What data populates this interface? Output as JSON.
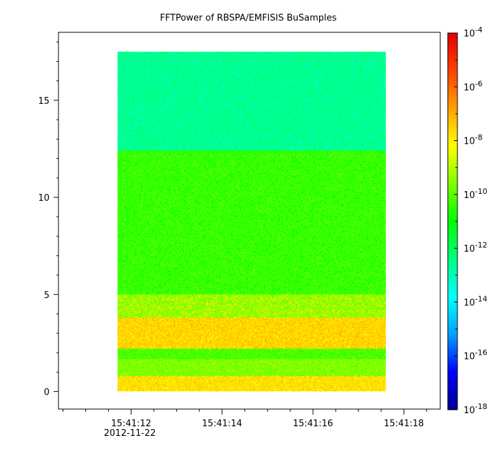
{
  "chart_data": {
    "type": "heatmap",
    "title": "FFTPower of RBSPA/EMFISIS  BuSamples",
    "xlabel": "",
    "ylabel": "",
    "x_date_label": "2012-11-22",
    "x_tick_labels": [
      "15:41:12",
      "15:41:14",
      "15:41:16",
      "15:41:18"
    ],
    "x_ticks_seconds": [
      12,
      14,
      16,
      18
    ],
    "xlim_seconds": [
      10.4,
      18.8
    ],
    "data_extent_seconds": [
      11.7,
      17.6
    ],
    "y_tick_labels": [
      "0",
      "5",
      "10",
      "15"
    ],
    "y_ticks": [
      0,
      5,
      10,
      15
    ],
    "ylim": [
      -0.9,
      18.5
    ],
    "data_extent_y": [
      0,
      17.5
    ],
    "colorbar": {
      "scale": "log",
      "range_exponents": [
        -18,
        -4
      ],
      "tick_exponents": [
        -4,
        -6,
        -8,
        -10,
        -12,
        -14,
        -16,
        -18
      ],
      "tick_base": "10",
      "colors": [
        "#00008f",
        "#0000ff",
        "#00a0ff",
        "#00ffff",
        "#00ff80",
        "#00ff00",
        "#80ff00",
        "#ffff00",
        "#ffa000",
        "#ff4000",
        "#e00000"
      ]
    },
    "bands": [
      {
        "y_range": [
          12.4,
          17.5
        ],
        "log_power": -12.6
      },
      {
        "y_range": [
          5.0,
          12.4
        ],
        "log_power": -10.4
      },
      {
        "y_range": [
          3.8,
          5.0
        ],
        "log_power": -9.6
      },
      {
        "y_range": [
          2.2,
          3.8
        ],
        "log_power": -7.6
      },
      {
        "y_range": [
          1.7,
          2.2
        ],
        "log_power": -10.2
      },
      {
        "y_range": [
          0.8,
          1.7
        ],
        "log_power": -9.6
      },
      {
        "y_range": [
          0.0,
          0.8
        ],
        "log_power": -7.8
      }
    ]
  }
}
